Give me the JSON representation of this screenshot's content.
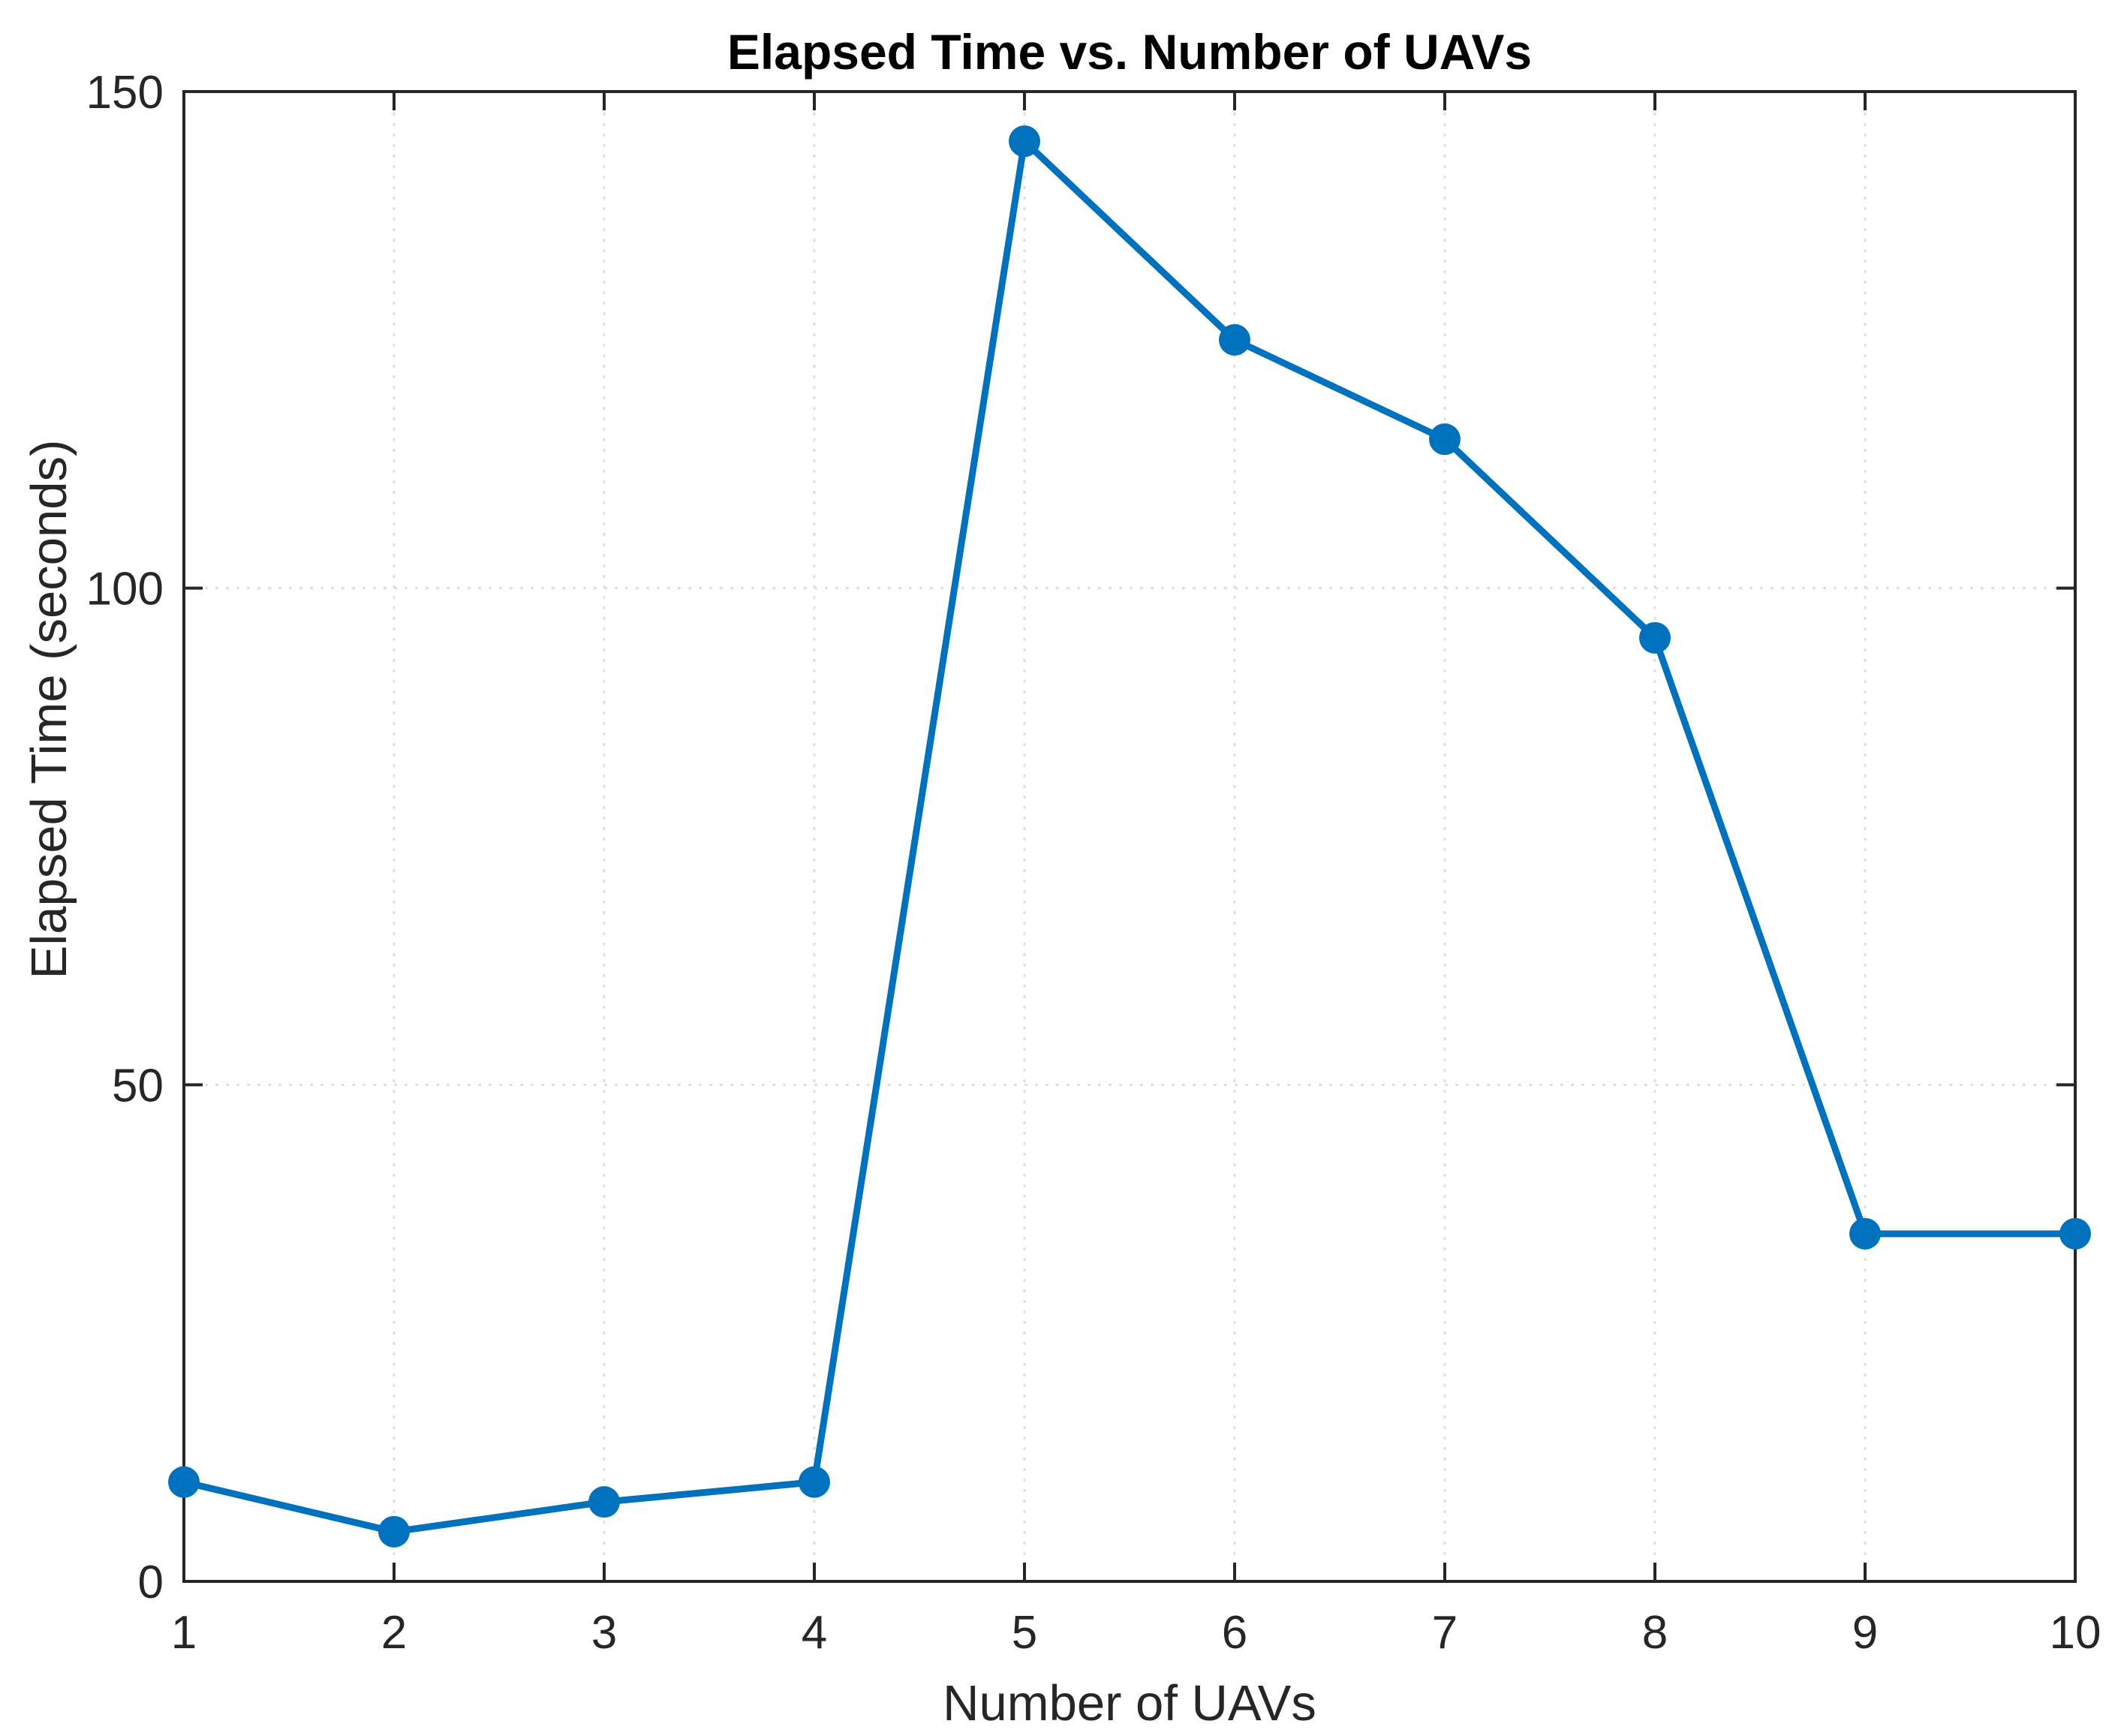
{
  "chart_data": {
    "type": "line",
    "title": "Elapsed Time vs. Number of UAVs",
    "xlabel": "Number of UAVs",
    "ylabel": "Elapsed Time (seconds)",
    "x": [
      1,
      2,
      3,
      4,
      5,
      6,
      7,
      8,
      9,
      10
    ],
    "series": [
      {
        "name": "Elapsed Time",
        "values": [
          10,
          5,
          8,
          10,
          145,
          125,
          115,
          95,
          35,
          35
        ],
        "color": "#0072BD",
        "marker": "filled-circle"
      }
    ],
    "xlim": [
      1,
      10
    ],
    "ylim": [
      0,
      150
    ],
    "xticks": [
      1,
      2,
      3,
      4,
      5,
      6,
      7,
      8,
      9,
      10
    ],
    "yticks": [
      0,
      50,
      100,
      150
    ],
    "grid": true,
    "grid_style": "dotted",
    "legend": null
  },
  "colors": {
    "line": "#0072BD",
    "axis": "#262626",
    "grid": "#DFDFDF",
    "title": "#000000"
  }
}
